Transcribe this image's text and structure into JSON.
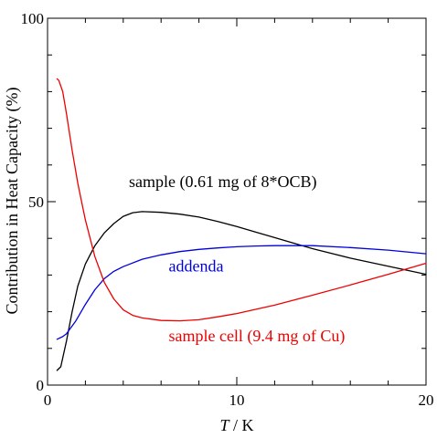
{
  "chart_data": {
    "type": "line",
    "xlabel_var": "T",
    "xlabel_unit": " / K",
    "ylabel": "Contribution in Heat Capacity (%)",
    "xlim": [
      0,
      20
    ],
    "ylim": [
      0,
      100
    ],
    "xticks": [
      0,
      10,
      20
    ],
    "yticks": [
      0,
      50,
      100
    ],
    "x_minor_step": 2,
    "y_minor_step": 10,
    "grid": false,
    "series": [
      {
        "name": "sample (0.61 mg of 8*OCB)",
        "color": "#000000",
        "points": [
          [
            0.5,
            4
          ],
          [
            0.7,
            5
          ],
          [
            1.0,
            12
          ],
          [
            1.3,
            20
          ],
          [
            1.6,
            27
          ],
          [
            2.0,
            33
          ],
          [
            2.5,
            38
          ],
          [
            3.0,
            41.5
          ],
          [
            3.5,
            44
          ],
          [
            4.0,
            46
          ],
          [
            4.5,
            47
          ],
          [
            5.0,
            47.3
          ],
          [
            6.0,
            47.1
          ],
          [
            7.0,
            46.6
          ],
          [
            8.0,
            45.8
          ],
          [
            9.0,
            44.6
          ],
          [
            10.0,
            43.2
          ],
          [
            12.0,
            40.2
          ],
          [
            14.0,
            37.2
          ],
          [
            16.0,
            34.6
          ],
          [
            18.0,
            32.4
          ],
          [
            20.0,
            30.2
          ]
        ]
      },
      {
        "name": "addenda",
        "color": "#0000dd",
        "points": [
          [
            0.5,
            12.5
          ],
          [
            0.8,
            13.2
          ],
          [
            1.0,
            14
          ],
          [
            1.5,
            17.5
          ],
          [
            2.0,
            22
          ],
          [
            2.5,
            26
          ],
          [
            3.0,
            29
          ],
          [
            3.5,
            31
          ],
          [
            4.0,
            32.3
          ],
          [
            5.0,
            34.3
          ],
          [
            6.0,
            35.5
          ],
          [
            7.0,
            36.4
          ],
          [
            8.0,
            37
          ],
          [
            9.0,
            37.4
          ],
          [
            10.0,
            37.7
          ],
          [
            11.0,
            37.9
          ],
          [
            12.0,
            38
          ],
          [
            14.0,
            38
          ],
          [
            16.0,
            37.5
          ],
          [
            18.0,
            36.8
          ],
          [
            20.0,
            35.8
          ]
        ]
      },
      {
        "name": "sample cell (9.4 mg of Cu)",
        "color": "#ee0000",
        "points": [
          [
            0.5,
            83.5
          ],
          [
            0.6,
            83
          ],
          [
            0.8,
            80
          ],
          [
            1.0,
            74
          ],
          [
            1.3,
            64
          ],
          [
            1.6,
            55
          ],
          [
            2.0,
            45
          ],
          [
            2.5,
            35
          ],
          [
            3.0,
            28
          ],
          [
            3.5,
            23.5
          ],
          [
            4.0,
            20.5
          ],
          [
            4.5,
            19
          ],
          [
            5.0,
            18.3
          ],
          [
            6.0,
            17.6
          ],
          [
            7.0,
            17.5
          ],
          [
            8.0,
            17.8
          ],
          [
            9.0,
            18.6
          ],
          [
            10.0,
            19.5
          ],
          [
            12.0,
            21.8
          ],
          [
            14.0,
            24.5
          ],
          [
            16.0,
            27.3
          ],
          [
            18.0,
            30.2
          ],
          [
            20.0,
            33.2
          ]
        ]
      }
    ],
    "annotations": [
      {
        "text": "sample (0.61 mg of 8*OCB)",
        "x": 4.3,
        "y": 54,
        "color": "#000000"
      },
      {
        "text": "addenda",
        "x": 6.4,
        "y": 31,
        "color": "#0000dd"
      },
      {
        "text": "sample cell (9.4 mg of Cu)",
        "x": 6.4,
        "y": 12,
        "color": "#ee0000"
      }
    ]
  }
}
